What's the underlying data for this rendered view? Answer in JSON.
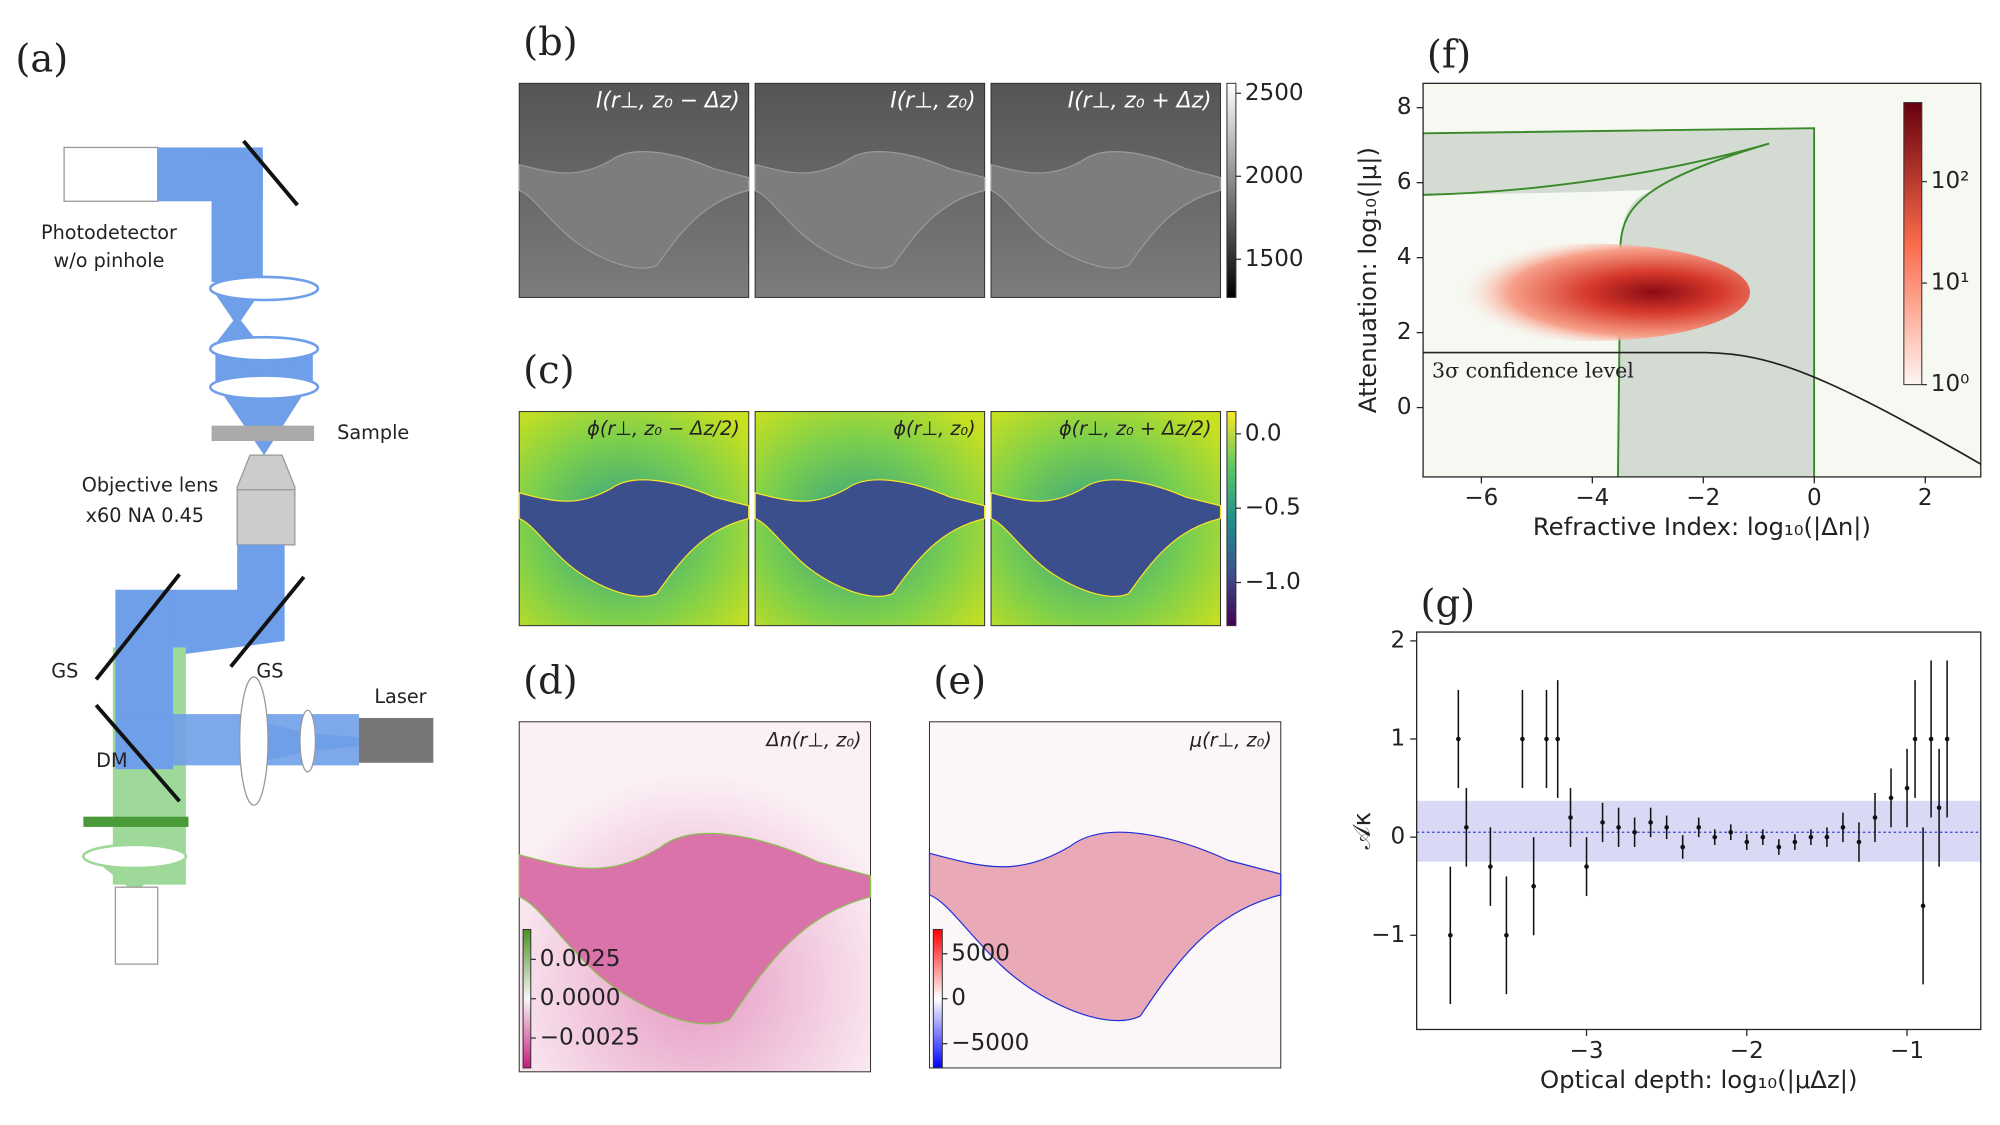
{
  "panels": {
    "a": {
      "label": "(a)",
      "photodetector": [
        "Photodetector",
        "w/o pinhole"
      ],
      "sample": "Sample",
      "objective": [
        "Objective lens",
        "x60 NA 0.45"
      ],
      "gs_left": "GS",
      "gs_right": "GS",
      "dm": "DM",
      "laser": "Laser"
    },
    "b": {
      "label": "(b)",
      "titles": [
        "I(r⊥, z₀ − Δz)",
        "I(r⊥, z₀)",
        "I(r⊥, z₀ + Δz)"
      ],
      "colorbar": {
        "lim": [
          1270,
          2560
        ],
        "ticks": [
          2500,
          2000,
          1500
        ]
      }
    },
    "c": {
      "label": "(c)",
      "titles": [
        "ϕ(r⊥, z₀ − Δz/2)",
        "ϕ(r⊥, z₀)",
        "ϕ(r⊥, z₀ + Δz/2)"
      ],
      "colorbar": {
        "lim": [
          -1.29,
          0.15
        ],
        "ticks": [
          {
            "value": 0,
            "label": "0.0"
          },
          {
            "value": -0.5,
            "label": "−0.5"
          },
          {
            "value": -1,
            "label": "−1.0"
          }
        ]
      }
    },
    "d": {
      "label": "(d)",
      "title": "Δn(r⊥, z₀)",
      "colorbar": {
        "lim": [
          -0.0044,
          0.0044
        ],
        "ticks": [
          0.0025,
          {
            "value": 0,
            "label": "0.0000"
          },
          {
            "value": -0.0025,
            "label": "−0.0025"
          }
        ]
      }
    },
    "e": {
      "label": "(e)",
      "title": "μ(r⊥, z₀)",
      "colorbar": {
        "lim": [
          -7700,
          7700
        ],
        "ticks": [
          5000,
          0,
          {
            "value": -5000,
            "label": "−5000"
          }
        ]
      }
    }
  },
  "chart_data": [
    {
      "type": "histogram2d",
      "label": "(f)",
      "xlabel": "Refractive Index: log₁₀(|Δn|)",
      "ylabel": "Attenuation: log₁₀(|μ|)",
      "annotation": "3σ confidence level",
      "xlim": [
        -7.05,
        3
      ],
      "xticks": [
        {
          "value": -6,
          "label": "−6"
        },
        {
          "value": -4,
          "label": "−4"
        },
        {
          "value": -2,
          "label": "−2"
        },
        0,
        2
      ],
      "ylim": [
        -1.85,
        8.65
      ],
      "yticks": [
        8,
        6,
        4,
        2,
        0
      ],
      "colorbar": {
        "log": true,
        "lim": [
          1,
          600
        ],
        "ticks": [
          {
            "value": 100,
            "label": "10²"
          },
          {
            "value": 10,
            "label": "10¹"
          },
          {
            "value": 1,
            "label": "10⁰"
          }
        ]
      }
    },
    {
      "type": "errorbar",
      "label": "(g)",
      "xlabel": "Optical depth: log₁₀(|μΔz|)",
      "ylabel": "𝒜κ",
      "xlim": [
        -4.06,
        -0.54
      ],
      "xticks": [
        {
          "value": -3,
          "label": "−3"
        },
        {
          "value": -2,
          "label": "−2"
        },
        {
          "value": -1,
          "label": "−1"
        }
      ],
      "ylim": [
        -1.96,
        2.09
      ],
      "yticks": [
        2,
        1,
        0,
        {
          "value": -1,
          "label": "−1"
        }
      ],
      "band": [
        -0.25,
        0.37
      ],
      "band_color": "#c9c9f2",
      "reference": 0.05,
      "color": "#111111",
      "x": [
        -3.85,
        -3.8,
        -3.75,
        -3.6,
        -3.5,
        -3.4,
        -3.33,
        -3.25,
        -3.18,
        -3.1,
        -3.0,
        -2.9,
        -2.8,
        -2.7,
        -2.6,
        -2.5,
        -2.4,
        -2.3,
        -2.2,
        -2.1,
        -2.0,
        -1.9,
        -1.8,
        -1.7,
        -1.6,
        -1.5,
        -1.4,
        -1.3,
        -1.2,
        -1.1,
        -1.0,
        -0.95,
        -0.9,
        -0.85,
        -0.8,
        -0.75
      ],
      "values": [
        -1.0,
        1.0,
        0.1,
        -0.3,
        -1.0,
        1.0,
        -0.5,
        1.0,
        1.0,
        0.2,
        -0.3,
        0.15,
        0.1,
        0.05,
        0.15,
        0.1,
        -0.1,
        0.1,
        0.0,
        0.05,
        -0.05,
        0.0,
        -0.1,
        -0.05,
        0.0,
        0.0,
        0.1,
        -0.05,
        0.2,
        0.4,
        0.5,
        1.0,
        -0.7,
        1.0,
        0.3,
        1.0
      ],
      "errors": [
        0.7,
        0.5,
        0.4,
        0.4,
        0.6,
        0.5,
        0.5,
        0.5,
        0.6,
        0.3,
        0.3,
        0.2,
        0.2,
        0.15,
        0.15,
        0.12,
        0.12,
        0.1,
        0.08,
        0.08,
        0.08,
        0.08,
        0.08,
        0.08,
        0.08,
        0.1,
        0.15,
        0.2,
        0.25,
        0.3,
        0.4,
        0.6,
        0.8,
        0.8,
        0.6,
        0.8
      ]
    }
  ]
}
